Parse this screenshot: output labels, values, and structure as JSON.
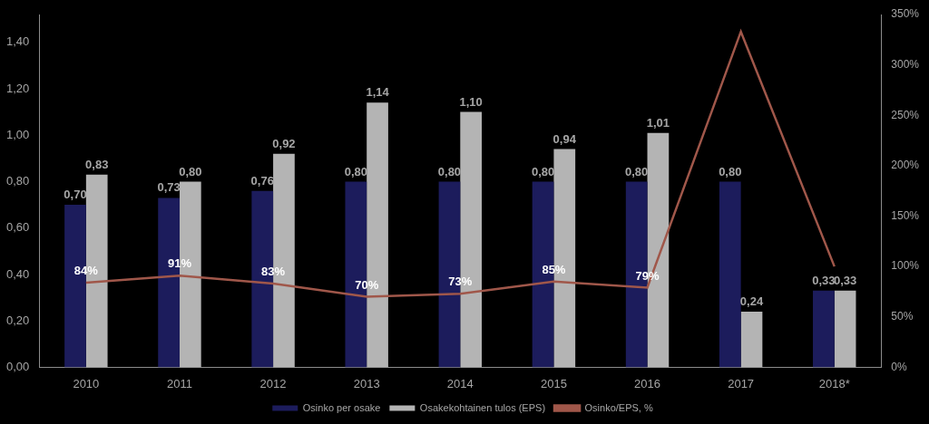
{
  "chart_data": {
    "type": "bar",
    "categories": [
      "2010",
      "2011",
      "2012",
      "2013",
      "2014",
      "2015",
      "2016",
      "2017",
      "2018*"
    ],
    "series": [
      {
        "name": "Osinko per osake",
        "color": "#1c1c5c",
        "values": [
          0.7,
          0.73,
          0.76,
          0.8,
          0.8,
          0.8,
          0.8,
          0.8,
          0.33
        ],
        "value_labels": [
          "0,70",
          "0,73",
          "0,76",
          "0,80",
          "0,80",
          "0,80",
          "0,80",
          "0,80",
          "0,33"
        ],
        "data_labels": true
      },
      {
        "name": "Osakekohtainen tulos (EPS)",
        "color": "#b4b4b4",
        "values": [
          0.83,
          0.8,
          0.92,
          1.14,
          1.1,
          0.94,
          1.01,
          0.24,
          0.33
        ],
        "value_labels": [
          "0,83",
          "0,80",
          "0,92",
          "1,14",
          "1,10",
          "0,94",
          "1,01",
          "0,24",
          "0,33"
        ],
        "data_labels": true
      },
      {
        "name": "Osinko/EPS, %",
        "type": "line",
        "axis": "y2",
        "color": "#a0574a",
        "values": [
          84,
          91,
          83,
          70,
          73,
          85,
          79,
          333,
          100
        ],
        "value_labels": [
          "84%",
          "91%",
          "83%",
          "70%",
          "73%",
          "85%",
          "79%",
          null,
          null
        ],
        "data_labels": true
      }
    ],
    "ylim": [
      0,
      1.52
    ],
    "yticks": [
      {
        "value": 0,
        "label": "0,00"
      },
      {
        "value": 0.2,
        "label": "0,20"
      },
      {
        "value": 0.4,
        "label": "0,40"
      },
      {
        "value": 0.6,
        "label": "0,60"
      },
      {
        "value": 0.8,
        "label": "0,80"
      },
      {
        "value": 1.0,
        "label": "1,00"
      },
      {
        "value": 1.2,
        "label": "1,20"
      },
      {
        "value": 1.4,
        "label": "1,40"
      }
    ],
    "y2lim": [
      0,
      350
    ],
    "y2ticks": [
      {
        "value": 0,
        "label": "0%"
      },
      {
        "value": 50,
        "label": "50%"
      },
      {
        "value": 100,
        "label": "100%"
      },
      {
        "value": 150,
        "label": "150%"
      },
      {
        "value": 200,
        "label": "200%"
      },
      {
        "value": 250,
        "label": "250%"
      },
      {
        "value": 300,
        "label": "300%"
      },
      {
        "value": 350,
        "label": "350%"
      }
    ],
    "grid": false,
    "legend": "bottom"
  }
}
